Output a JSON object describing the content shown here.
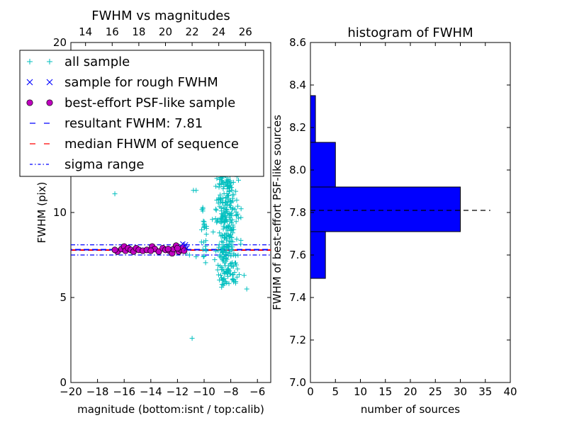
{
  "chart_data": [
    {
      "type": "scatter",
      "title": "FWHM vs magnitudes",
      "xlabel": "magnitude (bottom:isnt / top:calib)",
      "ylabel": "FWHM (pix)",
      "xlim": [
        -20,
        -5
      ],
      "ylim": [
        0,
        20
      ],
      "x_ticks": [
        "−20",
        "−18",
        "−16",
        "−14",
        "−12",
        "−10",
        "−8",
        "−6"
      ],
      "x_tick_values": [
        -20,
        -18,
        -16,
        -14,
        -12,
        -10,
        -8,
        -6
      ],
      "y_ticks": [
        "0",
        "5",
        "10",
        "15",
        "20"
      ],
      "y_tick_values": [
        0,
        5,
        10,
        15,
        20
      ],
      "top_ticks": [
        "14",
        "16",
        "18",
        "20",
        "22",
        "24",
        "26"
      ],
      "top_tick_values": [
        -18.9,
        -16.9,
        -14.9,
        -12.9,
        -10.9,
        -8.9,
        -6.9
      ],
      "colors": {
        "all": "#00bfbf",
        "rough": "#0000ff",
        "psf": "#bf00bf",
        "resultant": "#0000ff",
        "median": "#ff0000",
        "sigma": "#0000ff"
      },
      "legend": {
        "placement": "top-left",
        "entries": [
          {
            "label": "all sample",
            "marker": "plus",
            "color": "#00bfbf"
          },
          {
            "label": "sample for rough FWHM",
            "marker": "x",
            "color": "#0000ff"
          },
          {
            "label": "best-effort PSF-like sample",
            "marker": "circle",
            "color": "#bf00bf"
          },
          {
            "label": "resultant FWHM: 7.81",
            "marker": "dashed",
            "color": "#0000ff"
          },
          {
            "label": "median FHWM of sequence",
            "marker": "dashed",
            "color": "#ff0000"
          },
          {
            "label": "sigma range",
            "marker": "dashdot",
            "color": "#0000ff"
          }
        ]
      },
      "hlines": {
        "resultant": 7.81,
        "median": 7.79,
        "sigma_low": 7.5,
        "sigma_high": 8.1
      },
      "psf_points": [
        [
          -16.5,
          7.7
        ],
        [
          -16.2,
          7.85
        ],
        [
          -16.0,
          8.0
        ],
        [
          -15.9,
          7.75
        ],
        [
          -15.7,
          7.9
        ],
        [
          -15.5,
          7.8
        ],
        [
          -15.3,
          7.7
        ],
        [
          -15.1,
          7.9
        ],
        [
          -14.9,
          7.8
        ],
        [
          -14.6,
          7.75
        ],
        [
          -14.3,
          7.8
        ],
        [
          -13.9,
          8.0
        ],
        [
          -13.7,
          7.85
        ],
        [
          -13.4,
          7.7
        ],
        [
          -13.1,
          7.9
        ],
        [
          -12.9,
          7.8
        ],
        [
          -12.6,
          7.75
        ],
        [
          -12.4,
          7.6
        ],
        [
          -12.3,
          7.85
        ],
        [
          -12.1,
          8.05
        ],
        [
          -11.9,
          7.7
        ],
        [
          -11.7,
          7.8
        ],
        [
          -11.6,
          7.95
        ],
        [
          -12.0,
          7.9
        ],
        [
          -12.7,
          7.85
        ],
        [
          -14.0,
          7.75
        ],
        [
          -16.7,
          7.8
        ],
        [
          -11.5,
          7.75
        ]
      ],
      "rough_points": [
        [
          -11.6,
          8.15
        ],
        [
          -11.4,
          8.1
        ],
        [
          -11.3,
          7.9
        ]
      ],
      "outlier_points": [
        [
          -16.7,
          11.1
        ],
        [
          -10.6,
          11.3
        ],
        [
          -10.8,
          11.3
        ],
        [
          -11.1,
          7.5
        ],
        [
          -10.9,
          2.6
        ],
        [
          -6.8,
          5.5
        ],
        [
          -7.0,
          6.3
        ],
        [
          -10.6,
          7.4
        ],
        [
          -11.4,
          7.6
        ]
      ],
      "dense_cluster": {
        "x_range": [
          -9.8,
          -7.2
        ],
        "y_range": [
          5.8,
          12.4
        ],
        "count": 330
      },
      "scatter_band": {
        "x_range": [
          -10.2,
          -9.8
        ],
        "y_range": [
          7.0,
          10.5
        ],
        "count": 25
      }
    },
    {
      "type": "bar",
      "orientation": "horizontal",
      "title": "histogram of FWHM",
      "xlabel": "number of sources",
      "ylabel": "FWHM of best-effort PSF-like sources",
      "xlim": [
        0,
        40
      ],
      "ylim": [
        7.0,
        8.6
      ],
      "x_ticks": [
        "0",
        "5",
        "10",
        "15",
        "20",
        "25",
        "30",
        "35",
        "40"
      ],
      "x_tick_values": [
        0,
        5,
        10,
        15,
        20,
        25,
        30,
        35,
        40
      ],
      "y_ticks": [
        "7.0",
        "7.2",
        "7.4",
        "7.6",
        "7.8",
        "8.0",
        "8.2",
        "8.4",
        "8.6"
      ],
      "y_tick_values": [
        7.0,
        7.2,
        7.4,
        7.6,
        7.8,
        8.0,
        8.2,
        8.4,
        8.6
      ],
      "bar_color": "#0000ff",
      "bins": [
        {
          "low": 7.49,
          "high": 7.71,
          "count": 3
        },
        {
          "low": 7.71,
          "high": 7.92,
          "count": 30
        },
        {
          "low": 7.92,
          "high": 8.13,
          "count": 5
        },
        {
          "low": 8.13,
          "high": 8.35,
          "count": 1
        }
      ],
      "hline": {
        "value": 7.81,
        "x_range": [
          0,
          36
        ],
        "color": "#000000"
      }
    }
  ]
}
